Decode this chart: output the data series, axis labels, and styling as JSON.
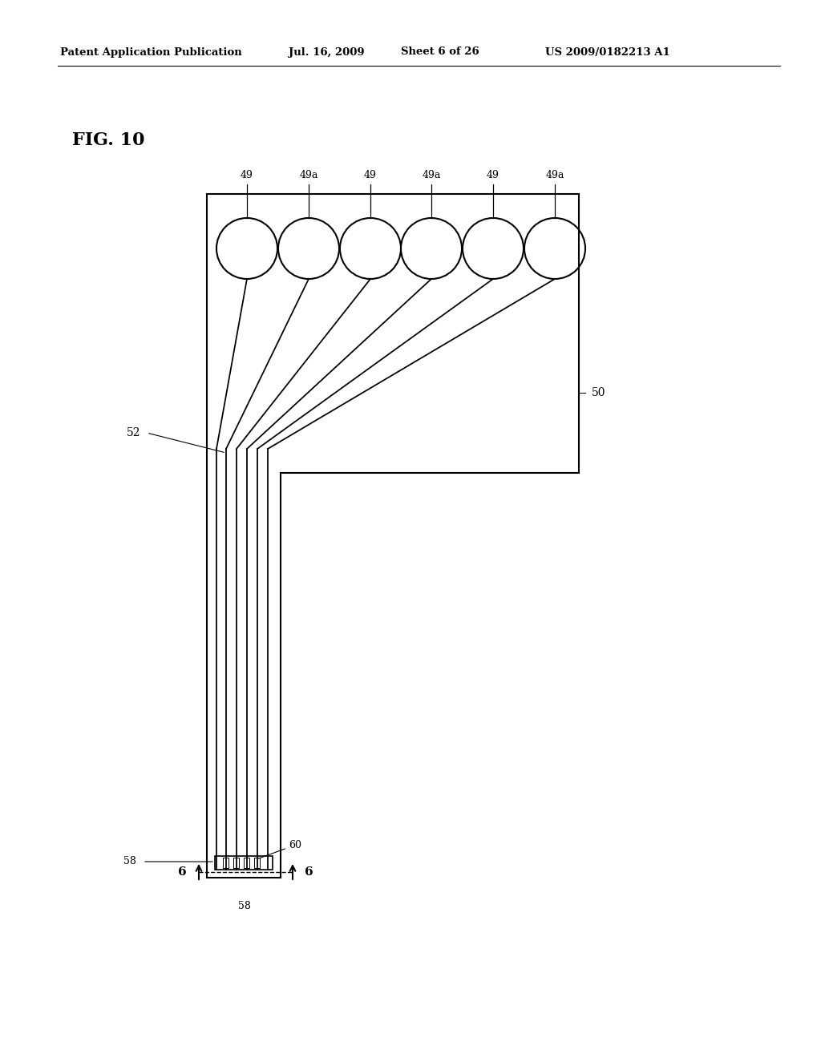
{
  "bg_color": "#ffffff",
  "header_text": "Patent Application Publication",
  "header_date": "Jul. 16, 2009",
  "header_sheet": "Sheet 6 of 26",
  "header_patent": "US 2009/0182213 A1",
  "fig_label": "FIG. 10",
  "labels_above": [
    "49",
    "49a",
    "49",
    "49a",
    "49",
    "49a"
  ],
  "label_50": "50",
  "label_52": "52",
  "label_58_left": "58",
  "label_58_bottom": "58",
  "label_60": "60",
  "label_6_left": "6",
  "label_6_right": "6",
  "line_color": "#000000",
  "line_width": 1.5
}
